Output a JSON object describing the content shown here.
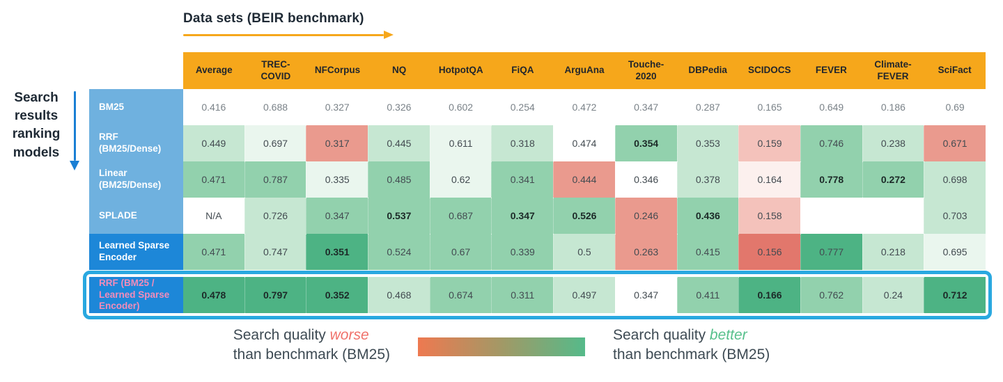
{
  "header": {
    "datasets_title": "Data sets (BEIR benchmark)",
    "models_label": "Search\nresults\nranking\nmodels"
  },
  "colors": {
    "header_bg": "#f6a71b",
    "arrow_orange": "#f6a71b",
    "arrow_blue": "#1a7fd4",
    "label_light_blue": "#6fb1df",
    "label_dark_blue": "#1d87d8",
    "highlight_border": "#29a8e0",
    "pink_label_text": "#f28cba",
    "tones": {
      "w": "#ffffff",
      "g1": "#eaf6ee",
      "g2": "#c6e7d2",
      "g3": "#92d1ad",
      "g4": "#4db384",
      "r1": "#fcf0ee",
      "r2": "#f4c2bb",
      "r3": "#ea9a8e",
      "r4": "#e2776c"
    }
  },
  "chart_data": {
    "type": "heatmap",
    "title": "Data sets (BEIR benchmark)",
    "row_axis_label": "Search results ranking models",
    "color_meaning": "red = worse than BM25 benchmark, green = better than BM25 benchmark",
    "columns": [
      "Average",
      "TREC-COVID",
      "NFCorpus",
      "NQ",
      "HotpotQA",
      "FiQA",
      "ArguAna",
      "Touche-2020",
      "DBPedia",
      "SCIDOCS",
      "FEVER",
      "Climate-FEVER",
      "SciFact"
    ],
    "columns_display": [
      "Average",
      "TREC-\nCOVID",
      "NFCorpus",
      "NQ",
      "HotpotQA",
      "FiQA",
      "ArguAna",
      "Touche-\n2020",
      "DBPedia",
      "SCIDOCS",
      "FEVER",
      "Climate-\nFEVER",
      "SciFact"
    ],
    "rows": [
      {
        "label": "BM25",
        "label_display": "BM25",
        "label_style": "light",
        "baseline": true,
        "highlighted": false,
        "values": [
          "0.416",
          "0.688",
          "0.327",
          "0.326",
          "0.602",
          "0.254",
          "0.472",
          "0.347",
          "0.287",
          "0.165",
          "0.649",
          "0.186",
          "0.69"
        ],
        "tones": [
          "w",
          "w",
          "w",
          "w",
          "w",
          "w",
          "w",
          "w",
          "w",
          "w",
          "w",
          "w",
          "w"
        ],
        "bold": []
      },
      {
        "label": "RRF (BM25/Dense)",
        "label_display": "RRF\n(BM25/Dense)",
        "label_style": "light",
        "baseline": false,
        "highlighted": false,
        "values": [
          "0.449",
          "0.697",
          "0.317",
          "0.445",
          "0.611",
          "0.318",
          "0.474",
          "0.354",
          "0.353",
          "0.159",
          "0.746",
          "0.238",
          "0.671"
        ],
        "tones": [
          "g2",
          "g1",
          "r3",
          "g2",
          "g1",
          "g2",
          "w",
          "g3",
          "g2",
          "r2",
          "g3",
          "g2",
          "r3"
        ],
        "bold": [
          7
        ]
      },
      {
        "label": "Linear (BM25/Dense)",
        "label_display": "Linear\n(BM25/Dense)",
        "label_style": "light",
        "baseline": false,
        "highlighted": false,
        "values": [
          "0.471",
          "0.787",
          "0.335",
          "0.485",
          "0.62",
          "0.341",
          "0.444",
          "0.346",
          "0.378",
          "0.164",
          "0.778",
          "0.272",
          "0.698"
        ],
        "tones": [
          "g3",
          "g3",
          "g1",
          "g3",
          "g1",
          "g3",
          "r3",
          "w",
          "g2",
          "r1",
          "g3",
          "g3",
          "g2"
        ],
        "bold": [
          10,
          11
        ]
      },
      {
        "label": "SPLADE",
        "label_display": "SPLADE",
        "label_style": "light",
        "baseline": false,
        "highlighted": false,
        "values": [
          "N/A",
          "0.726",
          "0.347",
          "0.537",
          "0.687",
          "0.347",
          "0.526",
          "0.246",
          "0.436",
          "0.158",
          "",
          "",
          "0.703"
        ],
        "tones": [
          "w",
          "g2",
          "g3",
          "g3",
          "g3",
          "g3",
          "g3",
          "r3",
          "g3",
          "r2",
          "w",
          "w",
          "g2"
        ],
        "bold": [
          3,
          5,
          6,
          8
        ]
      },
      {
        "label": "Learned Sparse Encoder",
        "label_display": "Learned Sparse\nEncoder",
        "label_style": "dark",
        "baseline": false,
        "highlighted": false,
        "values": [
          "0.471",
          "0.747",
          "0.351",
          "0.524",
          "0.67",
          "0.339",
          "0.5",
          "0.263",
          "0.415",
          "0.156",
          "0.777",
          "0.218",
          "0.695"
        ],
        "tones": [
          "g3",
          "g2",
          "g4",
          "g3",
          "g3",
          "g3",
          "g2",
          "r3",
          "g3",
          "r4",
          "g4",
          "g2",
          "g1"
        ],
        "bold": [
          2
        ]
      },
      {
        "label": "RRF (BM25 / Learned Sparse Encoder)",
        "label_display": "RRF (BM25 /\nLearned Sparse\nEncoder)",
        "label_style": "dark-pink",
        "baseline": false,
        "highlighted": true,
        "values": [
          "0.478",
          "0.797",
          "0.352",
          "0.468",
          "0.674",
          "0.311",
          "0.497",
          "0.347",
          "0.411",
          "0.166",
          "0.762",
          "0.24",
          "0.712"
        ],
        "tones": [
          "g4",
          "g4",
          "g4",
          "g2",
          "g3",
          "g3",
          "g2",
          "w",
          "g3",
          "g4",
          "g3",
          "g2",
          "g4"
        ],
        "bold": [
          0,
          1,
          2,
          9,
          12
        ]
      }
    ]
  },
  "legend": {
    "worse_prefix": "Search quality ",
    "worse_word": "worse",
    "worse_line2": "than benchmark (BM25)",
    "better_prefix": "Search quality ",
    "better_word": "better",
    "better_line2": "than benchmark (BM25)",
    "gradient_from": "#ee7950",
    "gradient_to": "#55ba8a"
  }
}
